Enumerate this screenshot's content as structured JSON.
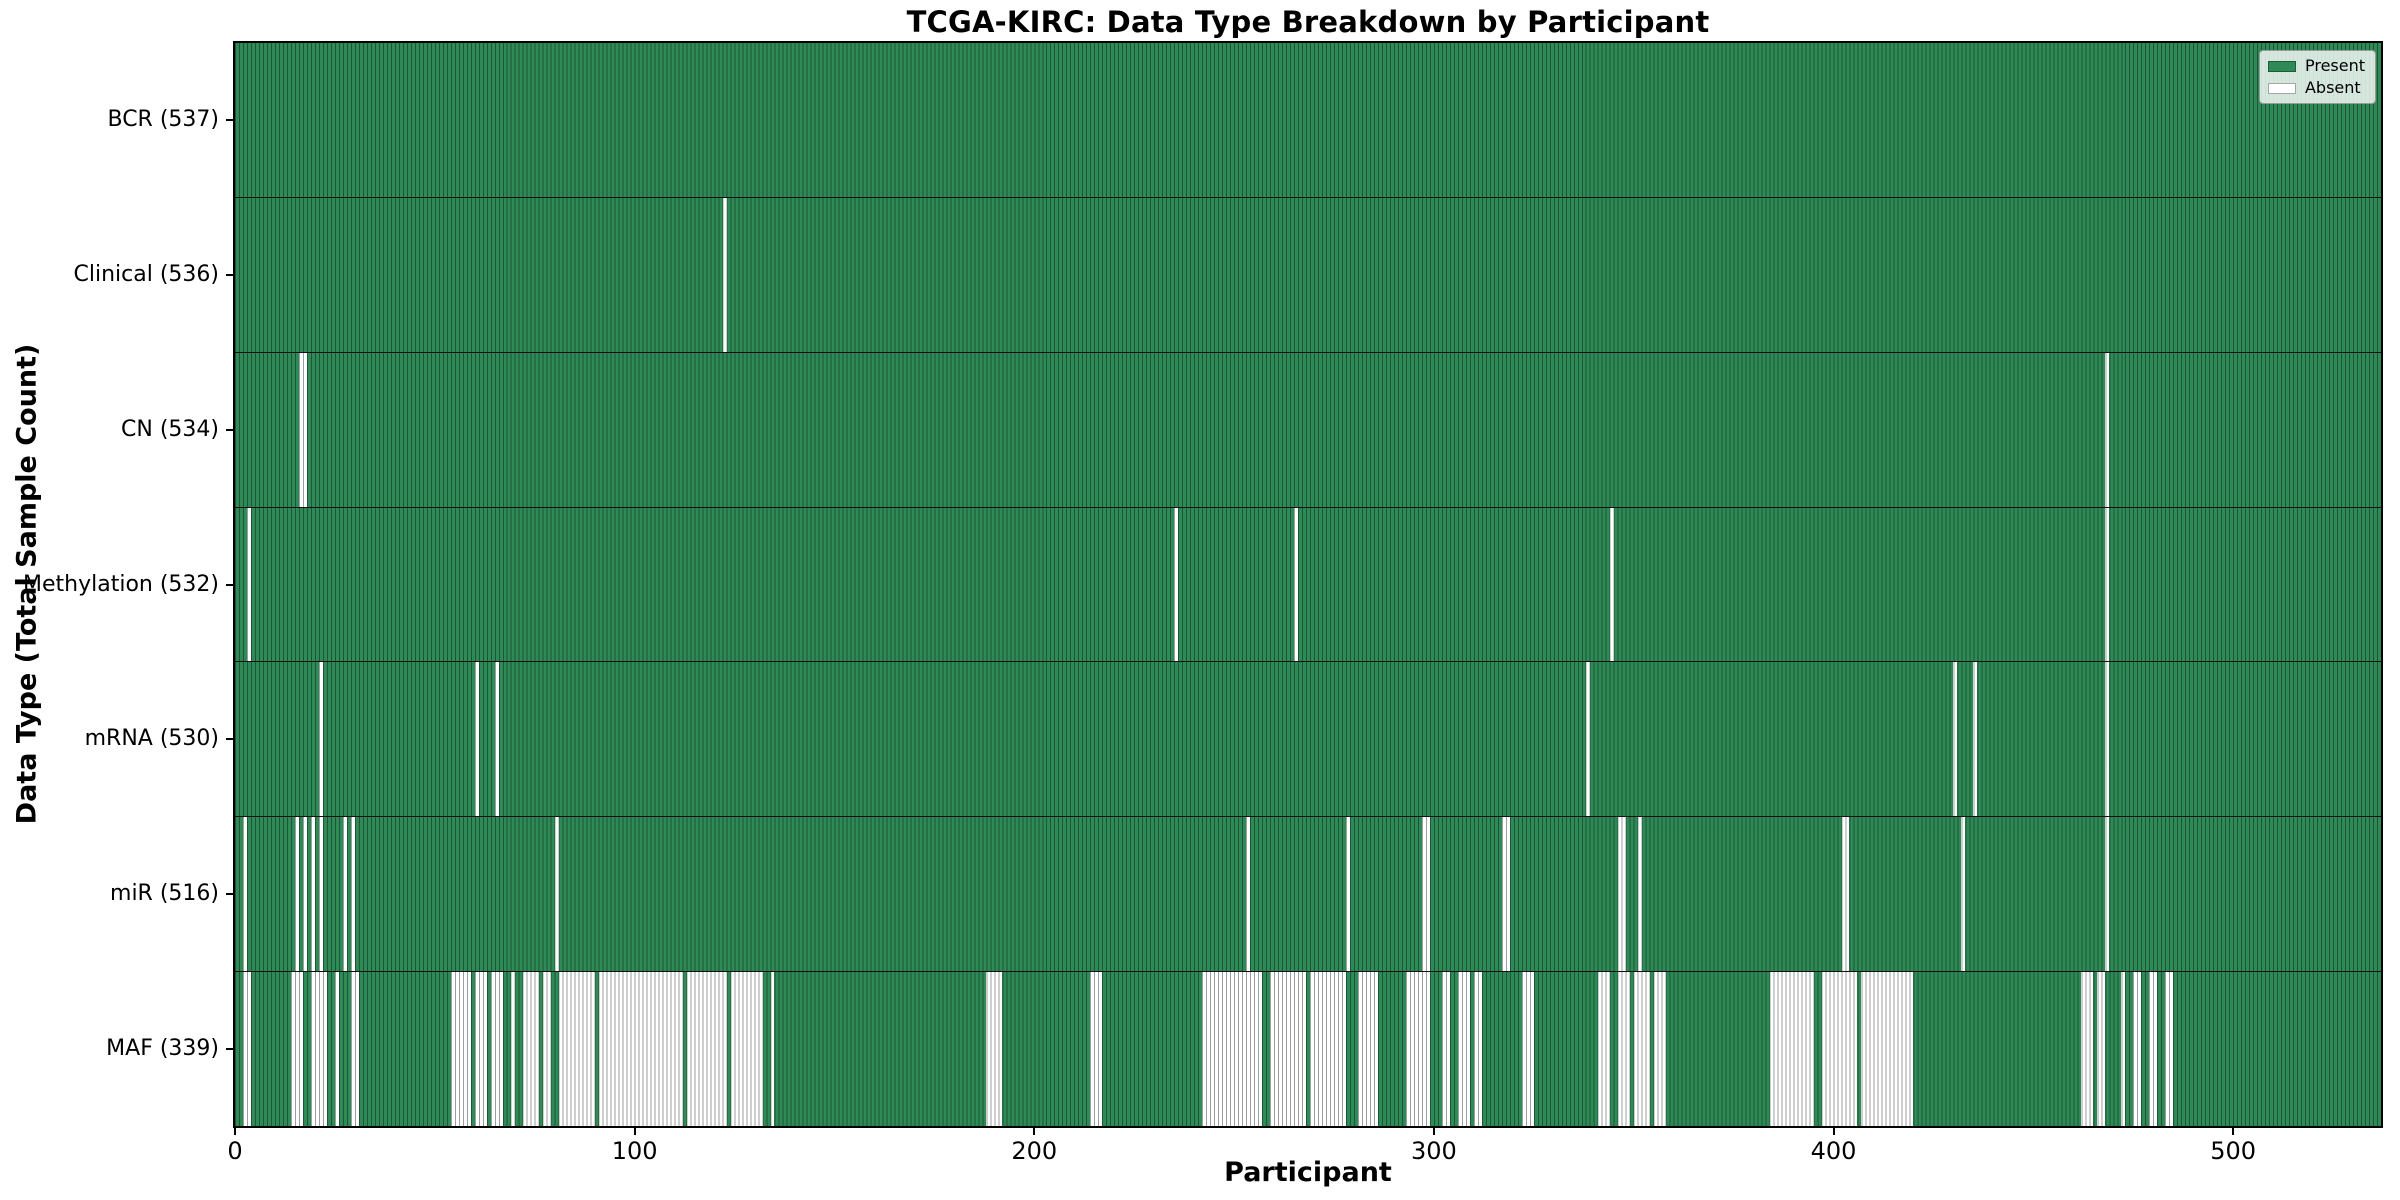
{
  "figure": {
    "title": "TCGA-KIRC: Data Type Breakdown by Participant",
    "xlabel": "Participant",
    "ylabel": "Data Type (Total Sample Count)"
  },
  "legend": {
    "position": "upper-right",
    "items": [
      {
        "label": "Present",
        "color": "#2e8b57"
      },
      {
        "label": "Absent",
        "color": "#ffffff"
      }
    ]
  },
  "chart_data": {
    "type": "heatmap",
    "title": "TCGA-KIRC: Data Type Breakdown by Participant",
    "xlabel": "Participant",
    "ylabel": "Data Type (Total Sample Count)",
    "x_range": [
      0,
      537
    ],
    "x_ticks": [
      0,
      100,
      200,
      300,
      400,
      500
    ],
    "n_participants": 537,
    "grid": false,
    "legend_position": "upper-right",
    "colors": {
      "present": "#2e8b57",
      "absent": "#ffffff",
      "bar_edge": "rgba(0,0,0,0.38)",
      "row_divider": "#111111",
      "spine": "#000000"
    },
    "rows": [
      {
        "data_type": "BCR",
        "label": "BCR (537)",
        "total_samples": 537,
        "absent_count": 0,
        "absent_ranges": []
      },
      {
        "data_type": "Clinical",
        "label": "Clinical (536)",
        "total_samples": 536,
        "absent_count": 1,
        "absent_ranges": [
          [
            122,
            122
          ]
        ]
      },
      {
        "data_type": "CN",
        "label": "CN (534)",
        "total_samples": 534,
        "absent_count": 3,
        "absent_ranges": [
          [
            16,
            17
          ],
          [
            468,
            468
          ]
        ]
      },
      {
        "data_type": "Methylation",
        "label": "Methylation (532)",
        "total_samples": 532,
        "absent_count": 5,
        "absent_ranges": [
          [
            3,
            3
          ],
          [
            235,
            235
          ],
          [
            265,
            265
          ],
          [
            344,
            344
          ],
          [
            468,
            468
          ]
        ]
      },
      {
        "data_type": "mRNA",
        "label": "mRNA (530)",
        "total_samples": 530,
        "absent_count": 7,
        "absent_ranges": [
          [
            21,
            21
          ],
          [
            60,
            60
          ],
          [
            65,
            65
          ],
          [
            338,
            338
          ],
          [
            430,
            430
          ],
          [
            435,
            435
          ],
          [
            468,
            468
          ]
        ]
      },
      {
        "data_type": "miR",
        "label": "miR (516)",
        "total_samples": 516,
        "absent_count": 21,
        "absent_ranges": [
          [
            2,
            2
          ],
          [
            15,
            15
          ],
          [
            17,
            17
          ],
          [
            19,
            19
          ],
          [
            21,
            21
          ],
          [
            27,
            27
          ],
          [
            29,
            29
          ],
          [
            80,
            80
          ],
          [
            253,
            253
          ],
          [
            278,
            278
          ],
          [
            297,
            298
          ],
          [
            317,
            318
          ],
          [
            346,
            347
          ],
          [
            351,
            351
          ],
          [
            402,
            403
          ],
          [
            432,
            432
          ],
          [
            468,
            468
          ]
        ]
      },
      {
        "data_type": "MAF",
        "label": "MAF (339)",
        "total_samples": 339,
        "absent_count": 198,
        "absent_ranges": [
          [
            2,
            3
          ],
          [
            14,
            16
          ],
          [
            19,
            22
          ],
          [
            25,
            25
          ],
          [
            29,
            30
          ],
          [
            54,
            58
          ],
          [
            60,
            62
          ],
          [
            64,
            66
          ],
          [
            69,
            69
          ],
          [
            72,
            75
          ],
          [
            77,
            78
          ],
          [
            81,
            89
          ],
          [
            91,
            111
          ],
          [
            113,
            122
          ],
          [
            124,
            131
          ],
          [
            134,
            134
          ],
          [
            188,
            191
          ],
          [
            214,
            216
          ],
          [
            242,
            256
          ],
          [
            259,
            267
          ],
          [
            269,
            277
          ],
          [
            281,
            285
          ],
          [
            293,
            298
          ],
          [
            302,
            303
          ],
          [
            306,
            308
          ],
          [
            310,
            311
          ],
          [
            322,
            324
          ],
          [
            341,
            343
          ],
          [
            346,
            348
          ],
          [
            350,
            353
          ],
          [
            355,
            357
          ],
          [
            384,
            394
          ],
          [
            397,
            405
          ],
          [
            407,
            419
          ],
          [
            462,
            464
          ],
          [
            466,
            467
          ],
          [
            472,
            472
          ],
          [
            475,
            476
          ],
          [
            479,
            480
          ],
          [
            483,
            484
          ]
        ]
      }
    ]
  }
}
